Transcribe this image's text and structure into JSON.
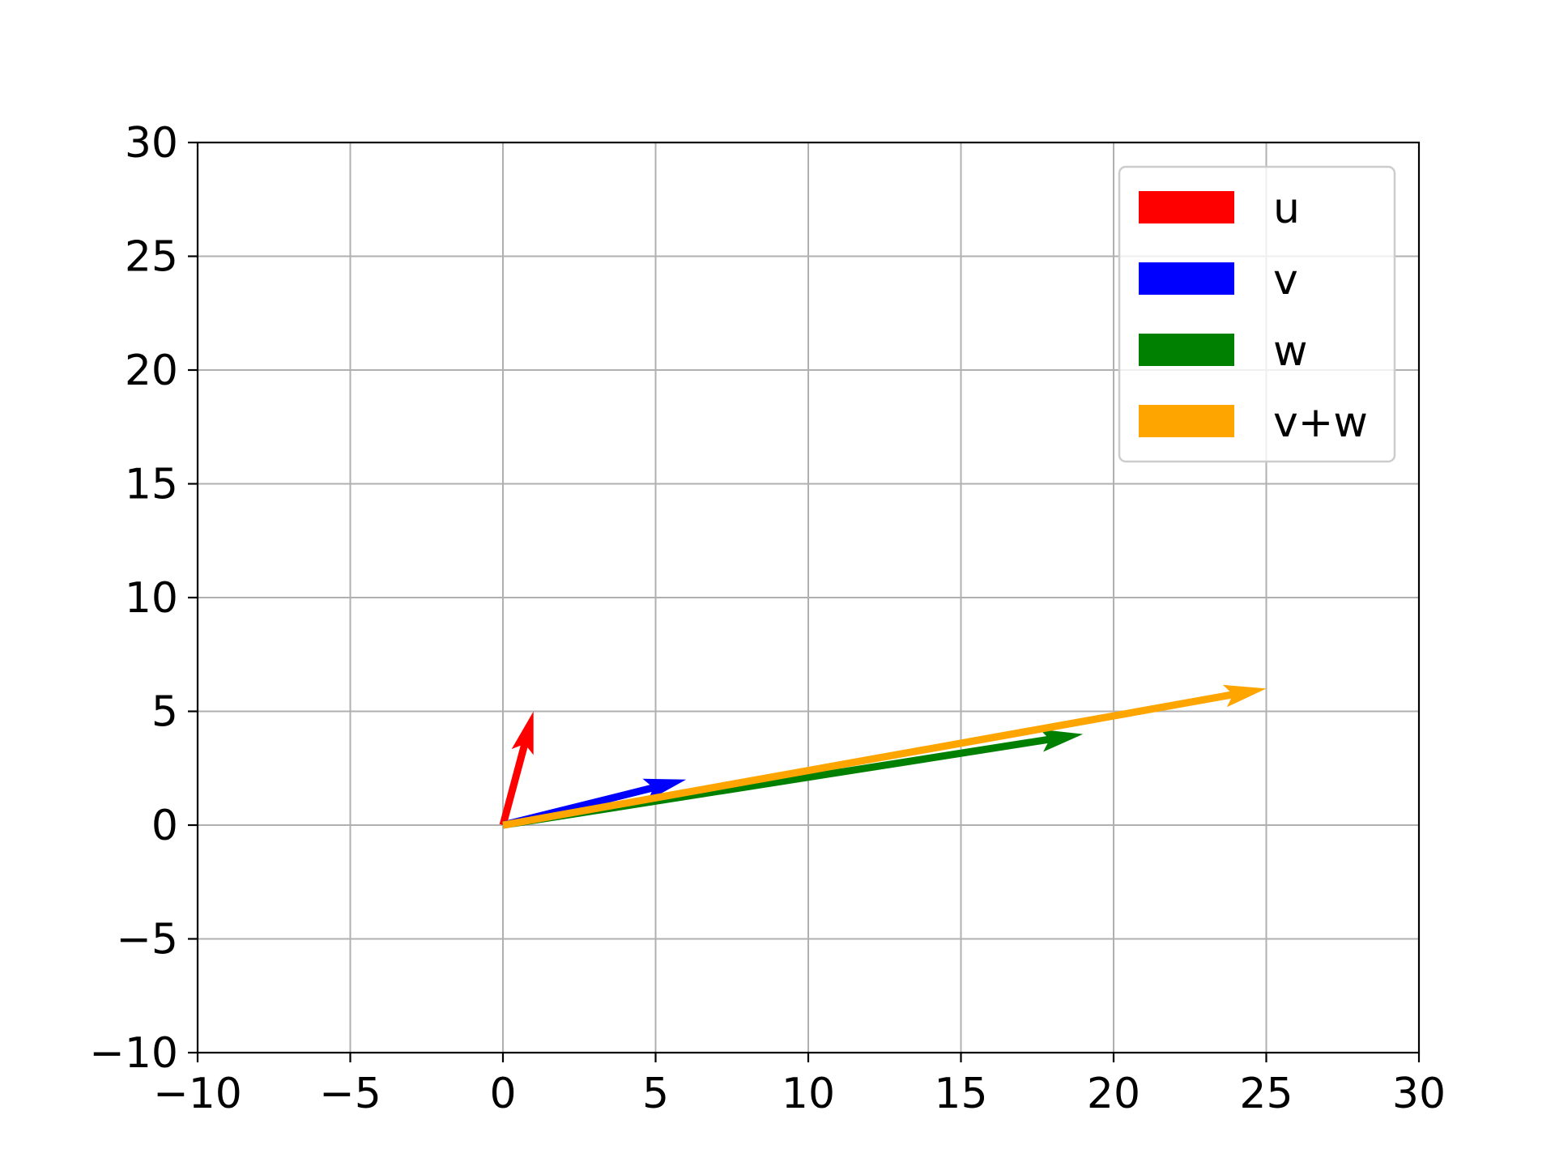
{
  "chart_data": {
    "type": "quiver",
    "title": "",
    "xlabel": "",
    "ylabel": "",
    "xlim": [
      -10,
      30
    ],
    "ylim": [
      -10,
      30
    ],
    "xticks": [
      -10,
      -5,
      0,
      5,
      10,
      15,
      20,
      25,
      30
    ],
    "yticks": [
      -10,
      -5,
      0,
      5,
      10,
      15,
      20,
      25,
      30
    ],
    "x_tick_labels": [
      "−10",
      "−5",
      "0",
      "5",
      "10",
      "15",
      "20",
      "25",
      "30"
    ],
    "y_tick_labels": [
      "−10",
      "−5",
      "0",
      "5",
      "10",
      "15",
      "20",
      "25",
      "30"
    ],
    "grid": true,
    "legend_position": "top-right",
    "series": [
      {
        "name": "u",
        "color": "#ff0000",
        "origin": [
          0,
          0
        ],
        "vector": [
          1,
          5
        ]
      },
      {
        "name": "v",
        "color": "#0000ff",
        "origin": [
          0,
          0
        ],
        "vector": [
          6,
          2
        ]
      },
      {
        "name": "w",
        "color": "#008000",
        "origin": [
          0,
          0
        ],
        "vector": [
          19,
          4
        ]
      },
      {
        "name": "v+w",
        "color": "#ffa500",
        "origin": [
          0,
          0
        ],
        "vector": [
          25,
          6
        ]
      }
    ]
  }
}
